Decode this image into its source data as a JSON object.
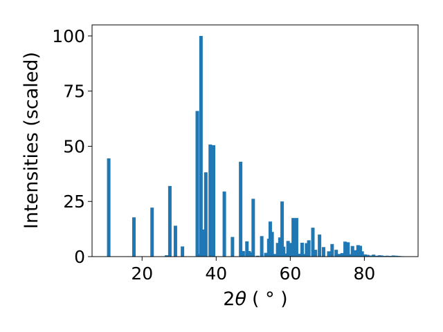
{
  "chart_data": {
    "type": "bar",
    "title": "",
    "xlabel_prefix": "2",
    "xlabel_symbol": "θ",
    "xlabel_unit": "( ° )",
    "ylabel": "Intensities (scaled)",
    "xlim": [
      6.5,
      94.5
    ],
    "ylim": [
      0,
      105
    ],
    "grid": false,
    "bar_color": "#1f77b4",
    "x_ticks": [
      20,
      40,
      60,
      80
    ],
    "y_ticks": [
      0,
      25,
      50,
      75,
      100
    ],
    "series": [
      {
        "x": [
          11.0,
          17.8,
          22.7,
          26.6,
          27.5,
          29.0,
          30.9,
          34.9,
          35.5,
          35.9,
          36.4,
          37.2,
          38.4,
          39.0,
          39.3,
          42.2,
          44.4,
          46.6,
          47.3,
          48.3,
          48.9,
          49.6,
          50.0,
          51.2,
          52.3,
          53.4,
          54.2,
          54.6,
          55.1,
          55.7,
          56.6,
          57.2,
          57.8,
          58.2,
          58.9,
          59.4,
          60.1,
          60.8,
          61.7,
          62.4,
          63.2,
          63.8,
          64.4,
          65.0,
          66.1,
          66.8,
          67.9,
          69.0,
          70.4,
          71.3,
          72.4,
          73.2,
          74.0,
          74.8,
          75.6,
          76.1,
          76.8,
          77.7,
          78.3,
          78.9,
          79.4,
          80.2,
          80.9,
          81.7,
          82.5,
          83.3,
          84.1,
          84.7,
          85.4,
          86.2,
          87.0,
          87.8,
          88.6,
          89.3,
          90.0
        ],
        "values": [
          44.5,
          17.8,
          22.2,
          0.6,
          32.0,
          14.0,
          4.6,
          66.0,
          1.2,
          100.0,
          12.3,
          38.2,
          50.8,
          0.9,
          50.5,
          29.5,
          8.9,
          43.0,
          2.5,
          6.9,
          2.5,
          1.9,
          26.2,
          0.4,
          9.3,
          1.7,
          8.1,
          15.9,
          11.2,
          1.2,
          6.2,
          8.7,
          25.0,
          4.5,
          1.4,
          7.1,
          6.2,
          17.5,
          17.5,
          1.3,
          6.3,
          1.2,
          6.1,
          7.4,
          13.1,
          3.1,
          10.0,
          4.3,
          2.4,
          5.7,
          3.1,
          1.2,
          1.6,
          6.8,
          6.5,
          1.1,
          4.8,
          2.9,
          5.2,
          4.9,
          2.4,
          1.0,
          0.8,
          0.5,
          0.9,
          0.4,
          0.6,
          0.5,
          0.3,
          0.4,
          0.3,
          0.5,
          0.4,
          0.3,
          0.2
        ]
      }
    ]
  }
}
